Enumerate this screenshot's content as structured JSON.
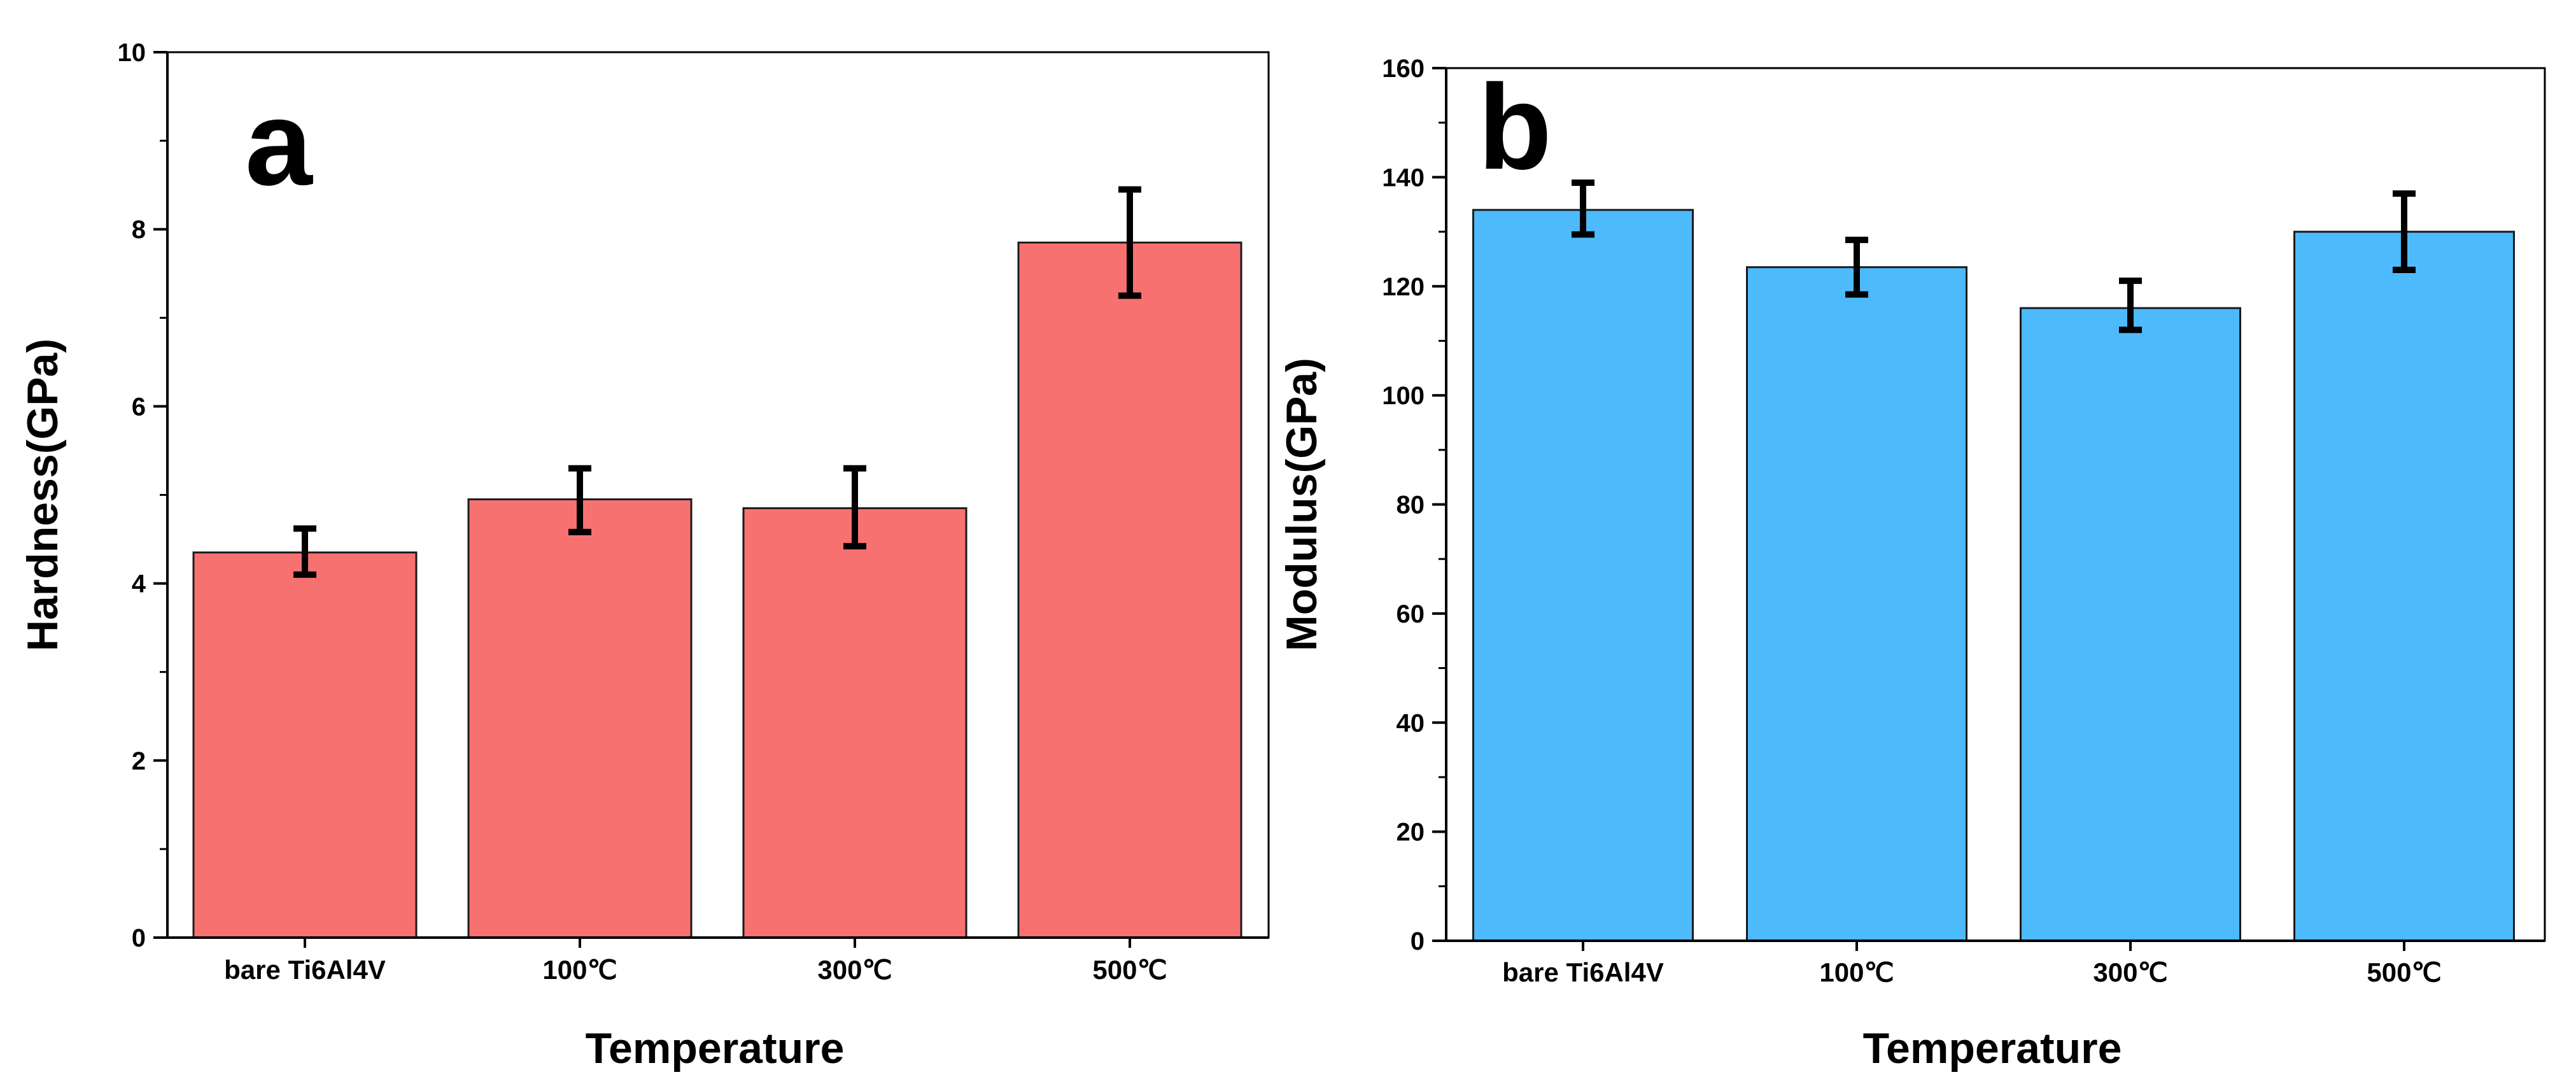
{
  "chart_data": [
    {
      "type": "bar",
      "panel_label": "a",
      "categories": [
        "bare Ti6Al4V",
        "100℃",
        "300℃",
        "500℃"
      ],
      "values": [
        4.35,
        4.95,
        4.85,
        7.85
      ],
      "errors_low": [
        4.1,
        4.58,
        4.42,
        7.25
      ],
      "errors_high": [
        4.62,
        5.3,
        5.3,
        8.45
      ],
      "color": "#F87171",
      "xlabel": "Temperature",
      "ylabel": "Hardness(GPa)",
      "ylim": [
        0,
        10
      ],
      "yticks": [
        0,
        2,
        4,
        6,
        8,
        10
      ],
      "ytick_labels": [
        "0",
        "2",
        "4",
        "6",
        "8",
        "10"
      ]
    },
    {
      "type": "bar",
      "panel_label": "b",
      "categories": [
        "bare Ti6Al4V",
        "100℃",
        "300℃",
        "500℃"
      ],
      "values": [
        134,
        123.5,
        116,
        130
      ],
      "errors_low": [
        129.5,
        118.5,
        112,
        123
      ],
      "errors_high": [
        139,
        128.5,
        121,
        137
      ],
      "color": "#4DBAFC",
      "xlabel": "Temperature",
      "ylabel": "Modulus(GPa)",
      "ylim": [
        0,
        160
      ],
      "yticks": [
        0,
        20,
        40,
        60,
        80,
        100,
        120,
        140,
        160
      ],
      "ytick_labels": [
        "0",
        "20",
        "40",
        "60",
        "80",
        "100",
        "120",
        "140",
        "160"
      ]
    }
  ]
}
